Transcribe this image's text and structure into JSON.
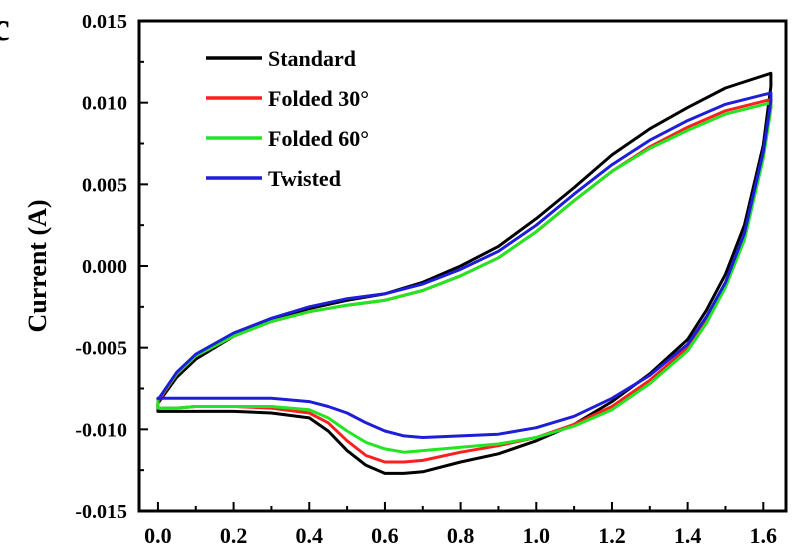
{
  "chart_data": {
    "type": "line",
    "panel_label": "c",
    "title": "",
    "xlabel": "",
    "ylabel": "Current (A)",
    "xlim": [
      -0.05,
      1.66
    ],
    "ylim": [
      -0.015,
      0.015
    ],
    "x_ticks": [
      0.0,
      0.2,
      0.4,
      0.6,
      0.8,
      1.0,
      1.2,
      1.4,
      1.6
    ],
    "x_tick_labels": [
      "0.0",
      "0.2",
      "0.4",
      "0.6",
      "0.8",
      "1.0",
      "1.2",
      "1.4",
      "1.6"
    ],
    "y_ticks": [
      -0.015,
      -0.01,
      -0.005,
      0.0,
      0.005,
      0.01,
      0.015
    ],
    "y_tick_labels": [
      "-0.015",
      "-0.010",
      "-0.005",
      "0.000",
      "0.005",
      "0.010",
      "0.015"
    ],
    "grid": false,
    "legend_position": "top-left",
    "series": [
      {
        "name": "Standard",
        "color": "#000000",
        "x": [
          0.0,
          0.05,
          0.1,
          0.2,
          0.3,
          0.4,
          0.5,
          0.6,
          0.7,
          0.8,
          0.9,
          1.0,
          1.1,
          1.2,
          1.3,
          1.4,
          1.5,
          1.62,
          1.62,
          1.6,
          1.55,
          1.5,
          1.45,
          1.4,
          1.3,
          1.2,
          1.1,
          1.0,
          0.9,
          0.8,
          0.7,
          0.65,
          0.6,
          0.55,
          0.5,
          0.45,
          0.4,
          0.3,
          0.2,
          0.1,
          0.05,
          0.0
        ],
        "y": [
          -0.0084,
          -0.0068,
          -0.0057,
          -0.0043,
          -0.0033,
          -0.0026,
          -0.0021,
          -0.0017,
          -0.001,
          0.0,
          0.0012,
          0.0029,
          0.0048,
          0.0068,
          0.0084,
          0.0097,
          0.0109,
          0.0118,
          0.011,
          0.0074,
          0.0025,
          -0.0005,
          -0.0027,
          -0.0045,
          -0.0066,
          -0.0083,
          -0.0097,
          -0.0107,
          -0.0115,
          -0.012,
          -0.0126,
          -0.0127,
          -0.0127,
          -0.0122,
          -0.0113,
          -0.0101,
          -0.0093,
          -0.009,
          -0.0089,
          -0.0089,
          -0.0089,
          -0.0089
        ]
      },
      {
        "name": "Folded 30°",
        "color": "#ff1f1f",
        "x": [
          0.0,
          0.05,
          0.1,
          0.2,
          0.3,
          0.4,
          0.5,
          0.6,
          0.7,
          0.8,
          0.9,
          1.0,
          1.1,
          1.2,
          1.3,
          1.4,
          1.5,
          1.62,
          1.62,
          1.6,
          1.55,
          1.5,
          1.45,
          1.4,
          1.3,
          1.2,
          1.1,
          1.0,
          0.9,
          0.8,
          0.7,
          0.65,
          0.6,
          0.55,
          0.5,
          0.45,
          0.4,
          0.3,
          0.2,
          0.1,
          0.05,
          0.0
        ],
        "y": [
          -0.0083,
          -0.0066,
          -0.0055,
          -0.0043,
          -0.0034,
          -0.0028,
          -0.0024,
          -0.0021,
          -0.0015,
          -0.0006,
          0.0005,
          0.0021,
          0.004,
          0.0058,
          0.0073,
          0.0085,
          0.0095,
          0.0102,
          0.0098,
          0.0068,
          0.0018,
          -0.0011,
          -0.0033,
          -0.005,
          -0.007,
          -0.0086,
          -0.0097,
          -0.0105,
          -0.011,
          -0.0114,
          -0.0119,
          -0.012,
          -0.012,
          -0.0116,
          -0.0107,
          -0.0096,
          -0.009,
          -0.0087,
          -0.0086,
          -0.0086,
          -0.0087,
          -0.0087
        ]
      },
      {
        "name": "Folded 60°",
        "color": "#22e622",
        "x": [
          0.0,
          0.05,
          0.1,
          0.2,
          0.3,
          0.4,
          0.5,
          0.6,
          0.7,
          0.8,
          0.9,
          1.0,
          1.1,
          1.2,
          1.3,
          1.4,
          1.5,
          1.62,
          1.62,
          1.6,
          1.55,
          1.5,
          1.45,
          1.4,
          1.3,
          1.2,
          1.1,
          1.0,
          0.9,
          0.8,
          0.7,
          0.65,
          0.6,
          0.55,
          0.5,
          0.45,
          0.4,
          0.3,
          0.2,
          0.1,
          0.05,
          0.0
        ],
        "y": [
          -0.0082,
          -0.0066,
          -0.0055,
          -0.0043,
          -0.0034,
          -0.0028,
          -0.0024,
          -0.0021,
          -0.0015,
          -0.0006,
          0.0005,
          0.0021,
          0.004,
          0.0058,
          0.0072,
          0.0083,
          0.0093,
          0.01,
          0.0096,
          0.0066,
          0.0016,
          -0.0013,
          -0.0035,
          -0.0052,
          -0.0072,
          -0.0088,
          -0.0098,
          -0.0105,
          -0.0109,
          -0.0111,
          -0.0113,
          -0.0114,
          -0.0112,
          -0.0108,
          -0.0101,
          -0.0093,
          -0.0088,
          -0.0086,
          -0.0086,
          -0.0086,
          -0.0087,
          -0.0087
        ]
      },
      {
        "name": "Twisted",
        "color": "#1e1ed8",
        "x": [
          0.0,
          0.05,
          0.1,
          0.2,
          0.3,
          0.4,
          0.5,
          0.6,
          0.7,
          0.8,
          0.9,
          1.0,
          1.1,
          1.2,
          1.3,
          1.4,
          1.5,
          1.62,
          1.62,
          1.6,
          1.55,
          1.5,
          1.45,
          1.4,
          1.3,
          1.2,
          1.1,
          1.0,
          0.9,
          0.8,
          0.7,
          0.65,
          0.6,
          0.55,
          0.5,
          0.45,
          0.4,
          0.3,
          0.2,
          0.1,
          0.05,
          0.0
        ],
        "y": [
          -0.0082,
          -0.0065,
          -0.0054,
          -0.0041,
          -0.0032,
          -0.0025,
          -0.002,
          -0.0017,
          -0.0011,
          -0.0002,
          0.0009,
          0.0025,
          0.0044,
          0.0062,
          0.0077,
          0.0089,
          0.0099,
          0.0106,
          0.0101,
          0.007,
          0.002,
          -0.001,
          -0.0031,
          -0.0048,
          -0.0067,
          -0.0081,
          -0.0092,
          -0.0099,
          -0.0103,
          -0.0104,
          -0.0105,
          -0.0104,
          -0.0101,
          -0.0096,
          -0.009,
          -0.0086,
          -0.0083,
          -0.0081,
          -0.0081,
          -0.0081,
          -0.0081,
          -0.0081
        ]
      }
    ]
  }
}
